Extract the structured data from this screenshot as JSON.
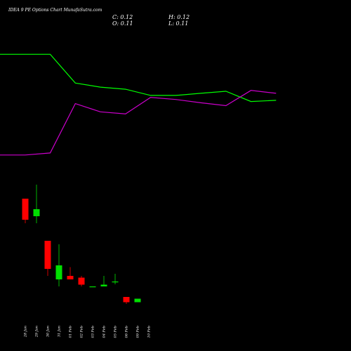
{
  "chart_title": "IDEA 9 PE Options  Chart MunafaSutra.com",
  "readout": {
    "close": "C: 0.12",
    "open": "O: 0.11",
    "high": "H: 0.12",
    "low": "L: 0.11"
  },
  "colors": {
    "background": "#000000",
    "up": "#00e000",
    "down": "#ff0000",
    "line_a": "#00ff00",
    "line_b": "#cc00cc",
    "text": "#ffffff"
  },
  "chart_data": [
    {
      "type": "line",
      "title": "",
      "series": [
        {
          "values": [
            0.35,
            0.35,
            0.35,
            0.28,
            0.27,
            0.265,
            0.25,
            0.25,
            0.255,
            0.26,
            0.235,
            0.238
          ]
        },
        {
          "values": [
            0.105,
            0.105,
            0.11,
            0.23,
            0.21,
            0.205,
            0.245,
            0.24,
            0.232,
            0.225,
            0.262,
            0.255
          ]
        }
      ],
      "ylim": [
        0.05,
        0.4
      ]
    },
    {
      "type": "candlestick",
      "title": "",
      "categories": [
        "28 Jan",
        "29 Jan",
        "30 Jan",
        "31 Jan",
        "01 Feb",
        "02 Feb",
        "03 Feb",
        "04 Feb",
        "05 Feb",
        "06 Feb",
        "09 Feb",
        "10 Feb"
      ],
      "candles": [
        {
          "date": "28 Jan",
          "open": 0.8,
          "high": 0.8,
          "low": 0.73,
          "close": 0.74
        },
        {
          "date": "29 Jan",
          "open": 0.75,
          "high": 0.84,
          "low": 0.73,
          "close": 0.77
        },
        {
          "date": "30 Jan",
          "open": 0.68,
          "high": 0.68,
          "low": 0.58,
          "close": 0.6
        },
        {
          "date": "31 Jan",
          "open": 0.57,
          "high": 0.67,
          "low": 0.55,
          "close": 0.61
        },
        {
          "date": "01 Feb",
          "open": 0.58,
          "high": 0.605,
          "low": 0.57,
          "close": 0.57
        },
        {
          "date": "02 Feb",
          "open": 0.575,
          "high": 0.58,
          "low": 0.55,
          "close": 0.555
        },
        {
          "date": "03 Feb",
          "open": 0.55,
          "high": 0.55,
          "low": 0.55,
          "close": 0.55
        },
        {
          "date": "04 Feb",
          "open": 0.55,
          "high": 0.58,
          "low": 0.55,
          "close": 0.555
        },
        {
          "date": "05 Feb",
          "open": 0.562,
          "high": 0.586,
          "low": 0.556,
          "close": 0.564
        },
        {
          "date": "06 Feb",
          "open": 0.52,
          "high": 0.52,
          "low": 0.5,
          "close": 0.505
        },
        {
          "date": "09 Feb",
          "open": 0.505,
          "high": 0.515,
          "low": 0.505,
          "close": 0.515
        }
      ],
      "ylim": [
        0.45,
        0.9
      ]
    }
  ]
}
